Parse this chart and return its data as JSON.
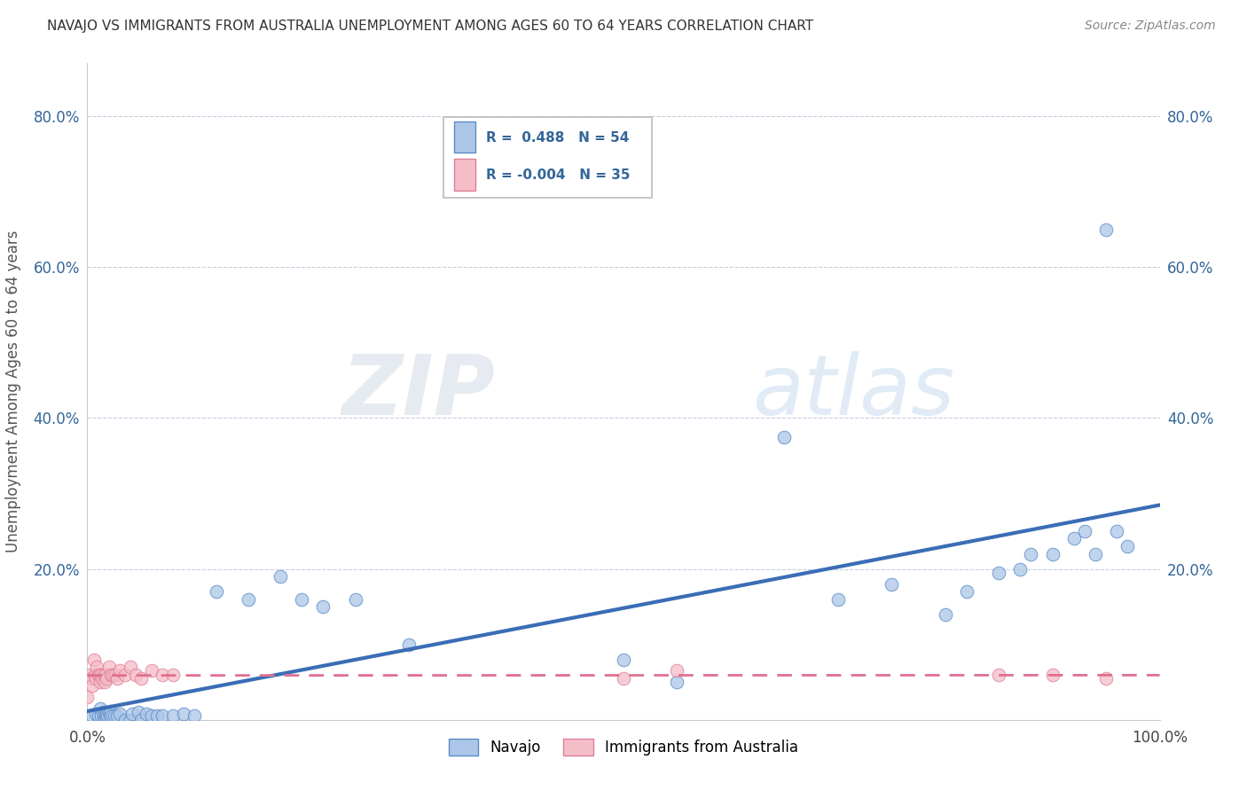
{
  "title": "NAVAJO VS IMMIGRANTS FROM AUSTRALIA UNEMPLOYMENT AMONG AGES 60 TO 64 YEARS CORRELATION CHART",
  "source": "Source: ZipAtlas.com",
  "ylabel": "Unemployment Among Ages 60 to 64 years",
  "xlim": [
    0,
    1
  ],
  "ylim": [
    0,
    0.87
  ],
  "navajo_R": 0.488,
  "navajo_N": 54,
  "australia_R": -0.004,
  "australia_N": 35,
  "navajo_color": "#adc6e8",
  "navajo_edge_color": "#5b8cc8",
  "australia_color": "#f5bdc8",
  "australia_edge_color": "#e08098",
  "navajo_line_color": "#3a6db5",
  "australia_line_color": "#e07090",
  "background_color": "#ffffff",
  "grid_color": "#c0d0e0",
  "watermark_zip": "ZIP",
  "watermark_atlas": "atlas",
  "legend_label_navajo": "Navajo",
  "legend_label_australia": "Immigrants from Australia",
  "navajo_x": [
    0.005,
    0.008,
    0.01,
    0.012,
    0.013,
    0.015,
    0.015,
    0.016,
    0.017,
    0.018,
    0.019,
    0.02,
    0.021,
    0.022,
    0.023,
    0.025,
    0.028,
    0.03,
    0.035,
    0.04,
    0.042,
    0.048,
    0.05,
    0.055,
    0.06,
    0.065,
    0.07,
    0.08,
    0.09,
    0.1,
    0.12,
    0.15,
    0.18,
    0.2,
    0.22,
    0.25,
    0.3,
    0.5,
    0.55,
    0.65,
    0.7,
    0.75,
    0.8,
    0.82,
    0.85,
    0.87,
    0.88,
    0.9,
    0.92,
    0.93,
    0.94,
    0.95,
    0.96,
    0.97
  ],
  "navajo_y": [
    0.005,
    0.008,
    0.005,
    0.015,
    0.005,
    0.01,
    0.005,
    0.0,
    0.005,
    0.008,
    0.005,
    0.01,
    0.005,
    0.012,
    0.005,
    0.005,
    0.005,
    0.008,
    0.0,
    0.0,
    0.008,
    0.01,
    0.0,
    0.008,
    0.005,
    0.005,
    0.005,
    0.005,
    0.008,
    0.005,
    0.17,
    0.16,
    0.19,
    0.16,
    0.15,
    0.16,
    0.1,
    0.08,
    0.05,
    0.375,
    0.16,
    0.18,
    0.14,
    0.17,
    0.195,
    0.2,
    0.22,
    0.22,
    0.24,
    0.25,
    0.22,
    0.65,
    0.25,
    0.23
  ],
  "australia_x": [
    0.0,
    0.002,
    0.004,
    0.005,
    0.006,
    0.007,
    0.008,
    0.009,
    0.01,
    0.011,
    0.012,
    0.013,
    0.014,
    0.015,
    0.016,
    0.017,
    0.018,
    0.02,
    0.022,
    0.024,
    0.026,
    0.028,
    0.03,
    0.035,
    0.04,
    0.045,
    0.05,
    0.06,
    0.07,
    0.08,
    0.5,
    0.55,
    0.85,
    0.9,
    0.95
  ],
  "australia_y": [
    0.03,
    0.06,
    0.055,
    0.045,
    0.08,
    0.06,
    0.055,
    0.07,
    0.06,
    0.06,
    0.05,
    0.06,
    0.055,
    0.06,
    0.05,
    0.06,
    0.055,
    0.07,
    0.06,
    0.06,
    0.06,
    0.055,
    0.065,
    0.06,
    0.07,
    0.06,
    0.055,
    0.065,
    0.06,
    0.06,
    0.055,
    0.065,
    0.06,
    0.06,
    0.055
  ]
}
